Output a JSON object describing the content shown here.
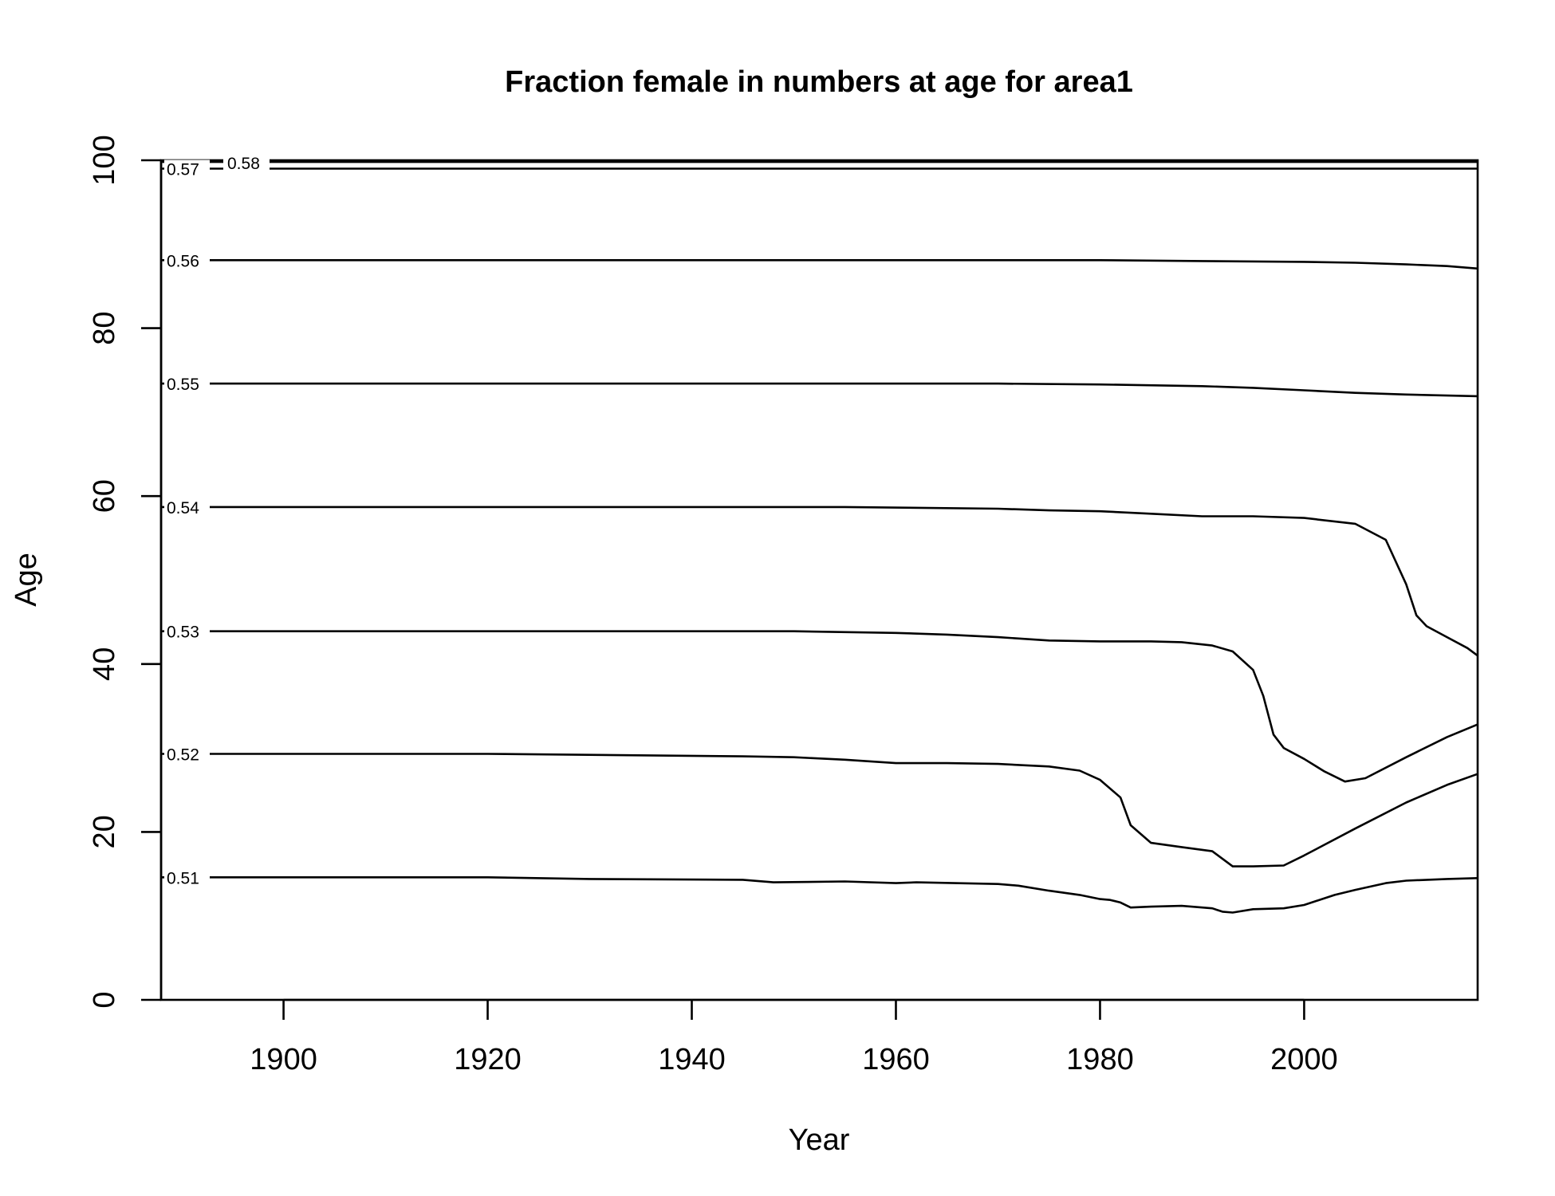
{
  "chart_data": {
    "type": "line",
    "subtype": "contour",
    "title": "Fraction female in numbers at age for area1",
    "xlabel": "Year",
    "ylabel": "Age",
    "xlim": [
      1888,
      2017
    ],
    "ylim": [
      0,
      100
    ],
    "xticks": [
      1900,
      1920,
      1940,
      1960,
      1980,
      2000
    ],
    "yticks": [
      0,
      20,
      40,
      60,
      80,
      100
    ],
    "grid": false,
    "legend": "none",
    "series": [
      {
        "label": "0.51",
        "x": [
          1888,
          1920,
          1930,
          1945,
          1948,
          1955,
          1960,
          1962,
          1970,
          1972,
          1975,
          1978,
          1980,
          1981,
          1982,
          1983,
          1985,
          1988,
          1991,
          1992,
          1993,
          1995,
          1998,
          2000,
          2003,
          2005,
          2008,
          2010,
          2014,
          2017
        ],
        "y": [
          14.6,
          14.6,
          14.4,
          14.3,
          14.0,
          14.1,
          13.9,
          14.0,
          13.8,
          13.6,
          13.0,
          12.5,
          12.0,
          11.9,
          11.6,
          11.0,
          11.1,
          11.2,
          10.9,
          10.5,
          10.4,
          10.8,
          10.9,
          11.3,
          12.5,
          13.1,
          13.9,
          14.2,
          14.4,
          14.5
        ]
      },
      {
        "label": "0.52",
        "x": [
          1888,
          1920,
          1945,
          1950,
          1955,
          1960,
          1965,
          1970,
          1975,
          1978,
          1980,
          1982,
          1983,
          1985,
          1988,
          1991,
          1992,
          1993,
          1995,
          1998,
          2000,
          2005,
          2010,
          2014,
          2017
        ],
        "y": [
          29.3,
          29.3,
          29.0,
          28.9,
          28.6,
          28.2,
          28.2,
          28.1,
          27.8,
          27.3,
          26.2,
          24.1,
          20.8,
          18.7,
          18.2,
          17.7,
          16.8,
          15.9,
          15.9,
          16.0,
          17.2,
          20.4,
          23.5,
          25.6,
          26.9
        ]
      },
      {
        "label": "0.53",
        "x": [
          1888,
          1950,
          1960,
          1965,
          1970,
          1975,
          1980,
          1985,
          1988,
          1991,
          1993,
          1995,
          1996,
          1997,
          1998,
          2000,
          2002,
          2004,
          2006,
          2010,
          2014,
          2017
        ],
        "y": [
          43.9,
          43.9,
          43.7,
          43.5,
          43.2,
          42.8,
          42.7,
          42.7,
          42.6,
          42.2,
          41.5,
          39.3,
          36.2,
          31.6,
          30.0,
          28.7,
          27.2,
          26.0,
          26.4,
          28.9,
          31.3,
          32.8
        ]
      },
      {
        "label": "0.54",
        "x": [
          1888,
          1955,
          1970,
          1975,
          1980,
          1985,
          1990,
          1995,
          2000,
          2005,
          2008,
          2010,
          2011,
          2012,
          2014,
          2016,
          2017
        ],
        "y": [
          58.7,
          58.7,
          58.5,
          58.3,
          58.2,
          57.9,
          57.6,
          57.6,
          57.4,
          56.7,
          54.8,
          49.5,
          45.8,
          44.5,
          43.2,
          41.9,
          41.0
        ]
      },
      {
        "label": "0.55",
        "x": [
          1888,
          1970,
          1980,
          1990,
          1995,
          2000,
          2005,
          2010,
          2017
        ],
        "y": [
          73.4,
          73.4,
          73.3,
          73.1,
          72.9,
          72.6,
          72.3,
          72.1,
          71.9
        ]
      },
      {
        "label": "0.56",
        "x": [
          1888,
          1980,
          1990,
          2000,
          2005,
          2010,
          2014,
          2017
        ],
        "y": [
          88.1,
          88.1,
          88.0,
          87.9,
          87.8,
          87.6,
          87.4,
          87.1
        ]
      },
      {
        "label": "0.57",
        "x": [
          1888,
          2017
        ],
        "y": [
          99.0,
          99.0
        ]
      },
      {
        "label": "0.58",
        "x": [
          1888,
          2017
        ],
        "y": [
          99.8,
          99.8
        ]
      }
    ]
  }
}
